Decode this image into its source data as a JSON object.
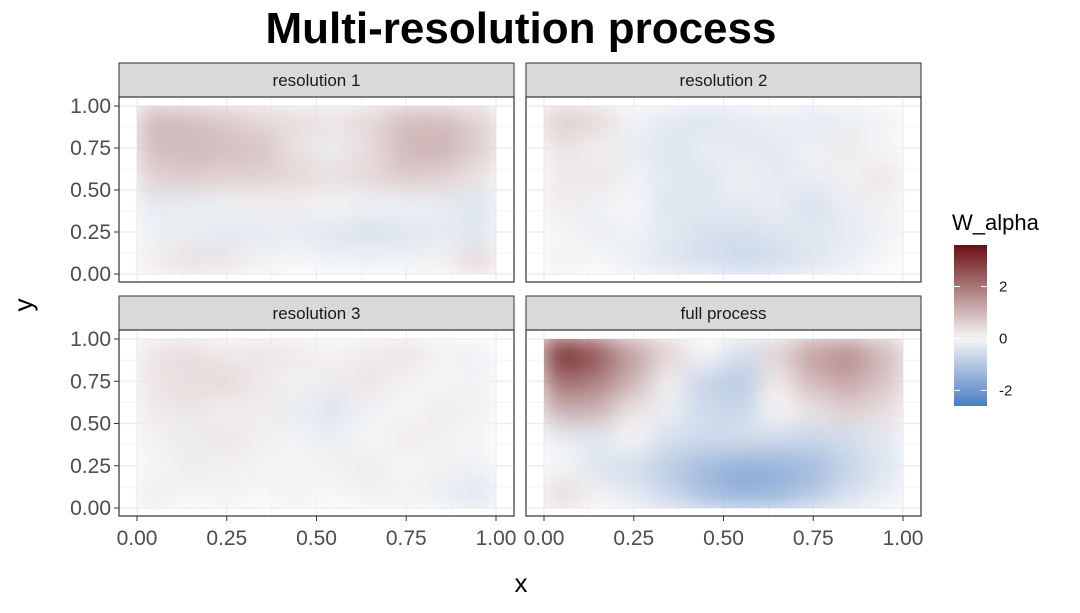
{
  "chart_data": {
    "type": "heatmap",
    "title": "Multi-resolution process",
    "xlabel": "x",
    "ylabel": "y",
    "xlim": [
      0,
      1
    ],
    "ylim": [
      0,
      1
    ],
    "x_ticks": [
      "0.00",
      "0.25",
      "0.50",
      "0.75",
      "1.00"
    ],
    "y_ticks": [
      "0.00",
      "0.25",
      "0.50",
      "0.75",
      "1.00"
    ],
    "legend": {
      "title": "W_alpha",
      "placement": "right",
      "range": [
        -2.6,
        3.6
      ],
      "ticks": [
        -2,
        0,
        2
      ],
      "tick_labels": [
        "-2",
        "0",
        "2"
      ],
      "colors": {
        "low": "#4a7cc4",
        "mid": "#f7f7f7",
        "high": "#6b0f12"
      }
    },
    "grid": true,
    "panels": [
      {
        "label": "resolution 1",
        "grid": [
          [
            0.2,
            0.4,
            0.3,
            0.1,
            0.0,
            -0.1,
            -0.1,
            -0.1,
            0.1,
            0.5
          ],
          [
            -0.1,
            -0.2,
            -0.3,
            -0.3,
            -0.3,
            -0.4,
            -0.5,
            -0.4,
            -0.3,
            -0.3
          ],
          [
            -0.3,
            -0.2,
            -0.1,
            0.1,
            0.1,
            0.0,
            -0.1,
            -0.1,
            -0.2,
            -0.4
          ],
          [
            0.6,
            0.7,
            0.6,
            0.6,
            0.5,
            0.4,
            0.5,
            0.7,
            0.6,
            0.3
          ],
          [
            0.9,
            1.0,
            0.9,
            0.8,
            0.3,
            -0.2,
            0.4,
            1.0,
            1.1,
            0.7
          ],
          [
            1.0,
            0.9,
            0.7,
            0.5,
            0.4,
            0.3,
            0.5,
            0.9,
            0.9,
            0.6
          ]
        ]
      },
      {
        "label": "resolution 2",
        "grid": [
          [
            0.1,
            0.0,
            -0.2,
            -0.4,
            -0.5,
            -0.7,
            -0.6,
            -0.4,
            -0.2,
            0.0
          ],
          [
            0.0,
            -0.2,
            -0.1,
            -0.3,
            -0.5,
            -0.5,
            -0.4,
            -0.3,
            -0.3,
            -0.1
          ],
          [
            0.2,
            -0.1,
            0.0,
            -0.4,
            -0.3,
            -0.3,
            -0.2,
            -0.5,
            -0.2,
            0.1
          ],
          [
            0.2,
            0.3,
            -0.1,
            -0.3,
            -0.4,
            -0.1,
            -0.3,
            -0.2,
            0.1,
            0.3
          ],
          [
            0.3,
            0.1,
            -0.2,
            -0.4,
            -0.2,
            -0.3,
            -0.3,
            -0.1,
            0.2,
            0.0
          ],
          [
            0.7,
            0.5,
            -0.1,
            -0.3,
            -0.4,
            -0.3,
            -0.2,
            -0.3,
            -0.2,
            -0.1
          ]
        ]
      },
      {
        "label": "resolution 3",
        "grid": [
          [
            0.2,
            0.0,
            -0.1,
            0.0,
            0.1,
            0.0,
            -0.1,
            0.1,
            -0.2,
            -0.4
          ],
          [
            0.0,
            0.2,
            0.1,
            -0.1,
            0.0,
            0.1,
            0.2,
            0.0,
            0.1,
            -0.1
          ],
          [
            0.1,
            -0.2,
            0.3,
            0.1,
            -0.1,
            -0.2,
            0.0,
            0.2,
            0.1,
            0.0
          ],
          [
            0.2,
            0.3,
            0.1,
            0.2,
            -0.2,
            -0.4,
            -0.1,
            0.0,
            0.2,
            0.1
          ],
          [
            0.3,
            0.4,
            0.5,
            0.2,
            0.1,
            0.2,
            0.3,
            0.1,
            0.0,
            -0.1
          ],
          [
            0.3,
            0.4,
            0.2,
            0.3,
            0.2,
            0.1,
            0.2,
            0.3,
            0.1,
            -0.1
          ]
        ]
      },
      {
        "label": "full process",
        "grid": [
          [
            0.5,
            0.1,
            -0.3,
            -0.7,
            -1.2,
            -1.5,
            -1.4,
            -1.0,
            -0.5,
            -0.2
          ],
          [
            0.0,
            -0.4,
            -0.6,
            -0.9,
            -1.3,
            -1.6,
            -1.5,
            -1.3,
            -0.8,
            -0.4
          ],
          [
            -0.2,
            -0.3,
            0.0,
            -0.5,
            -0.6,
            -0.5,
            -0.6,
            -0.7,
            -0.5,
            -0.3
          ],
          [
            1.2,
            1.1,
            0.3,
            -0.2,
            -0.6,
            -0.7,
            0.0,
            0.3,
            0.6,
            0.4
          ],
          [
            2.2,
            1.9,
            1.1,
            0.1,
            -0.8,
            -1.0,
            0.2,
            1.0,
            1.3,
            0.8
          ],
          [
            3.5,
            2.7,
            1.4,
            0.6,
            0.0,
            -0.5,
            0.6,
            1.4,
            1.7,
            1.0
          ]
        ]
      }
    ]
  }
}
